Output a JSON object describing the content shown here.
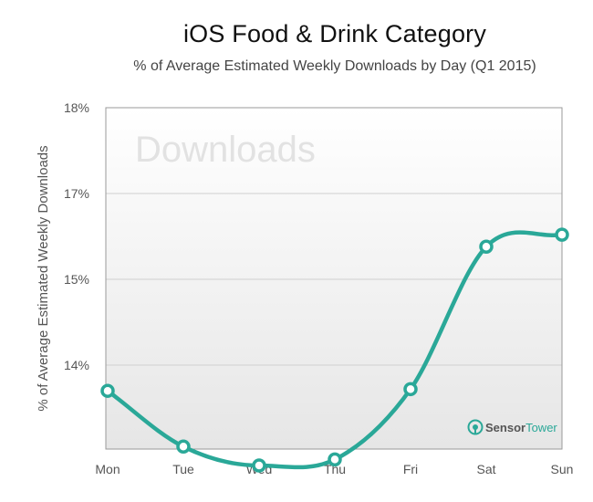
{
  "chart_data": {
    "type": "line",
    "title": "iOS Food & Drink Category",
    "subtitle": "% of Average Estimated Weekly Downloads by Day (Q1 2015)",
    "xlabel": "",
    "ylabel": "% of Average Estimated Weekly Downloads",
    "categories": [
      "Mon",
      "Tue",
      "Wed",
      "Thu",
      "Fri",
      "Sat",
      "Sun"
    ],
    "y_ticks": [
      {
        "label": "18%",
        "index": 0
      },
      {
        "label": "17%",
        "index": 1
      },
      {
        "label": "15%",
        "index": 2
      },
      {
        "label": "14%",
        "index": 3
      }
    ],
    "y_tick_count": 4,
    "series": [
      {
        "name": "Downloads",
        "values": [
          3.3,
          3.95,
          4.17,
          4.1,
          3.28,
          1.62,
          1.48
        ]
      }
    ],
    "value_unit": "y-tick index (0 = 18% at top, 3 = 14%)",
    "grid": true,
    "legend": "none"
  },
  "watermark": "Downloads",
  "brand": {
    "name_part1": "Sensor",
    "name_part2": "Tower"
  },
  "colors": {
    "line": "#2aa898",
    "plot_bg_top": "#ffffff",
    "plot_bg_bottom": "#e6e6e6",
    "grid": "#cfcfcf",
    "brand_dark": "#555555",
    "brand_accent": "#2aa898"
  }
}
